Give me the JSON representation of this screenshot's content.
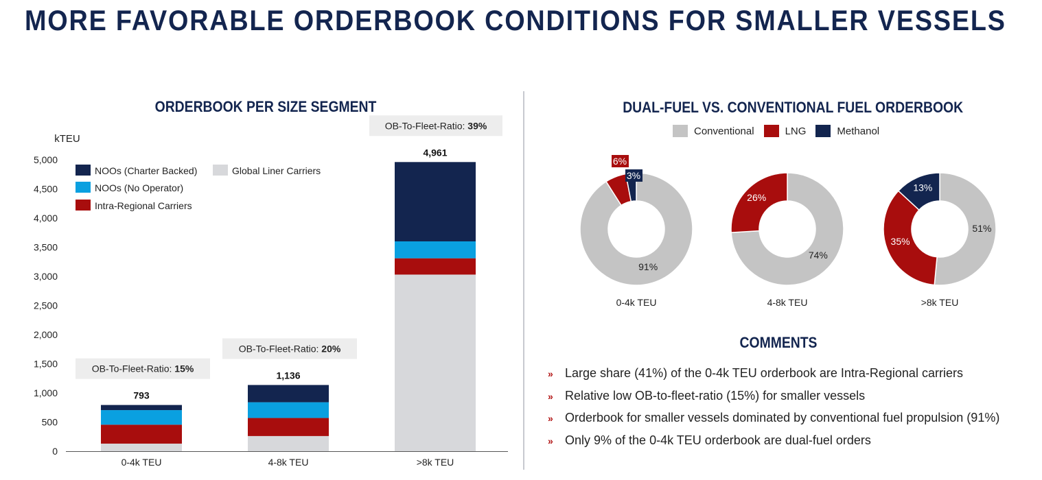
{
  "page": {
    "title": "MORE FAVORABLE ORDERBOOK CONDITIONS FOR SMALLER VESSELS"
  },
  "colors": {
    "navy": "#13254f",
    "blue": "#0aa0e0",
    "red": "#a80d0d",
    "lightgray": "#d7d8db",
    "donut_gray": "#c4c4c4",
    "bullet": "#b01010"
  },
  "left_chart": {
    "title": "ORDERBOOK PER SIZE SEGMENT",
    "ratio_label": "OB-To-Fleet-Ratio: ",
    "legend": [
      {
        "name": "NOOs (Charter Backed)",
        "color": "#13254f"
      },
      {
        "name": "Global Liner Carriers",
        "color": "#d7d8db"
      },
      {
        "name": "NOOs (No Operator)",
        "color": "#0aa0e0"
      },
      {
        "name": "Intra-Regional Carriers",
        "color": "#a80d0d"
      }
    ]
  },
  "right_chart": {
    "title": "DUAL-FUEL VS. CONVENTIONAL FUEL ORDERBOOK",
    "legend": [
      {
        "name": "Conventional",
        "color": "#c4c4c4"
      },
      {
        "name": "LNG",
        "color": "#a80d0d"
      },
      {
        "name": "Methanol",
        "color": "#13254f"
      }
    ]
  },
  "comments": {
    "title": "COMMENTS",
    "items": [
      "Large share (41%) of the 0-4k TEU orderbook are Intra-Regional carriers",
      "Relative low OB-to-fleet-ratio (15%) for smaller vessels",
      "Orderbook for smaller vessels dominated by conventional fuel propulsion (91%)",
      "Only 9% of the 0-4k TEU orderbook are dual-fuel orders"
    ],
    "bullet": "»"
  },
  "chart_data": [
    {
      "type": "bar",
      "stacked": true,
      "title": "ORDERBOOK PER SIZE SEGMENT",
      "ylabel": "kTEU",
      "ylim": [
        0,
        5000
      ],
      "yticks": [
        "0",
        "500",
        "1,000",
        "1,500",
        "2,000",
        "2,500",
        "3,000",
        "3,500",
        "4,000",
        "4,500",
        "5,000"
      ],
      "categories": [
        "0-4k TEU",
        "4-8k TEU",
        ">8k TEU"
      ],
      "totals": [
        "793",
        "1,136",
        "4,961"
      ],
      "ob_to_fleet_ratio": [
        "15%",
        "20%",
        "39%"
      ],
      "series": [
        {
          "name": "Global Liner Carriers",
          "values": [
            130,
            260,
            3030
          ]
        },
        {
          "name": "Intra-Regional Carriers",
          "values": [
            325,
            310,
            280
          ]
        },
        {
          "name": "NOOs (No Operator)",
          "values": [
            250,
            270,
            290
          ]
        },
        {
          "name": "NOOs (Charter Backed)",
          "values": [
            88,
            296,
            1361
          ]
        }
      ],
      "grid": false
    },
    {
      "type": "pie",
      "donut": true,
      "title": "DUAL-FUEL VS. CONVENTIONAL FUEL ORDERBOOK",
      "series_names": [
        "Conventional",
        "LNG",
        "Methanol"
      ],
      "charts": [
        {
          "label": "0-4k TEU",
          "values": [
            91,
            6,
            3
          ],
          "labels": [
            "91%",
            "6%",
            "3%"
          ]
        },
        {
          "label": "4-8k TEU",
          "values": [
            74,
            26,
            0
          ],
          "labels": [
            "74%",
            "26%",
            ""
          ]
        },
        {
          "label": ">8k TEU",
          "values": [
            51,
            35,
            13
          ],
          "labels": [
            "51%",
            "35%",
            "13%"
          ]
        }
      ]
    }
  ]
}
